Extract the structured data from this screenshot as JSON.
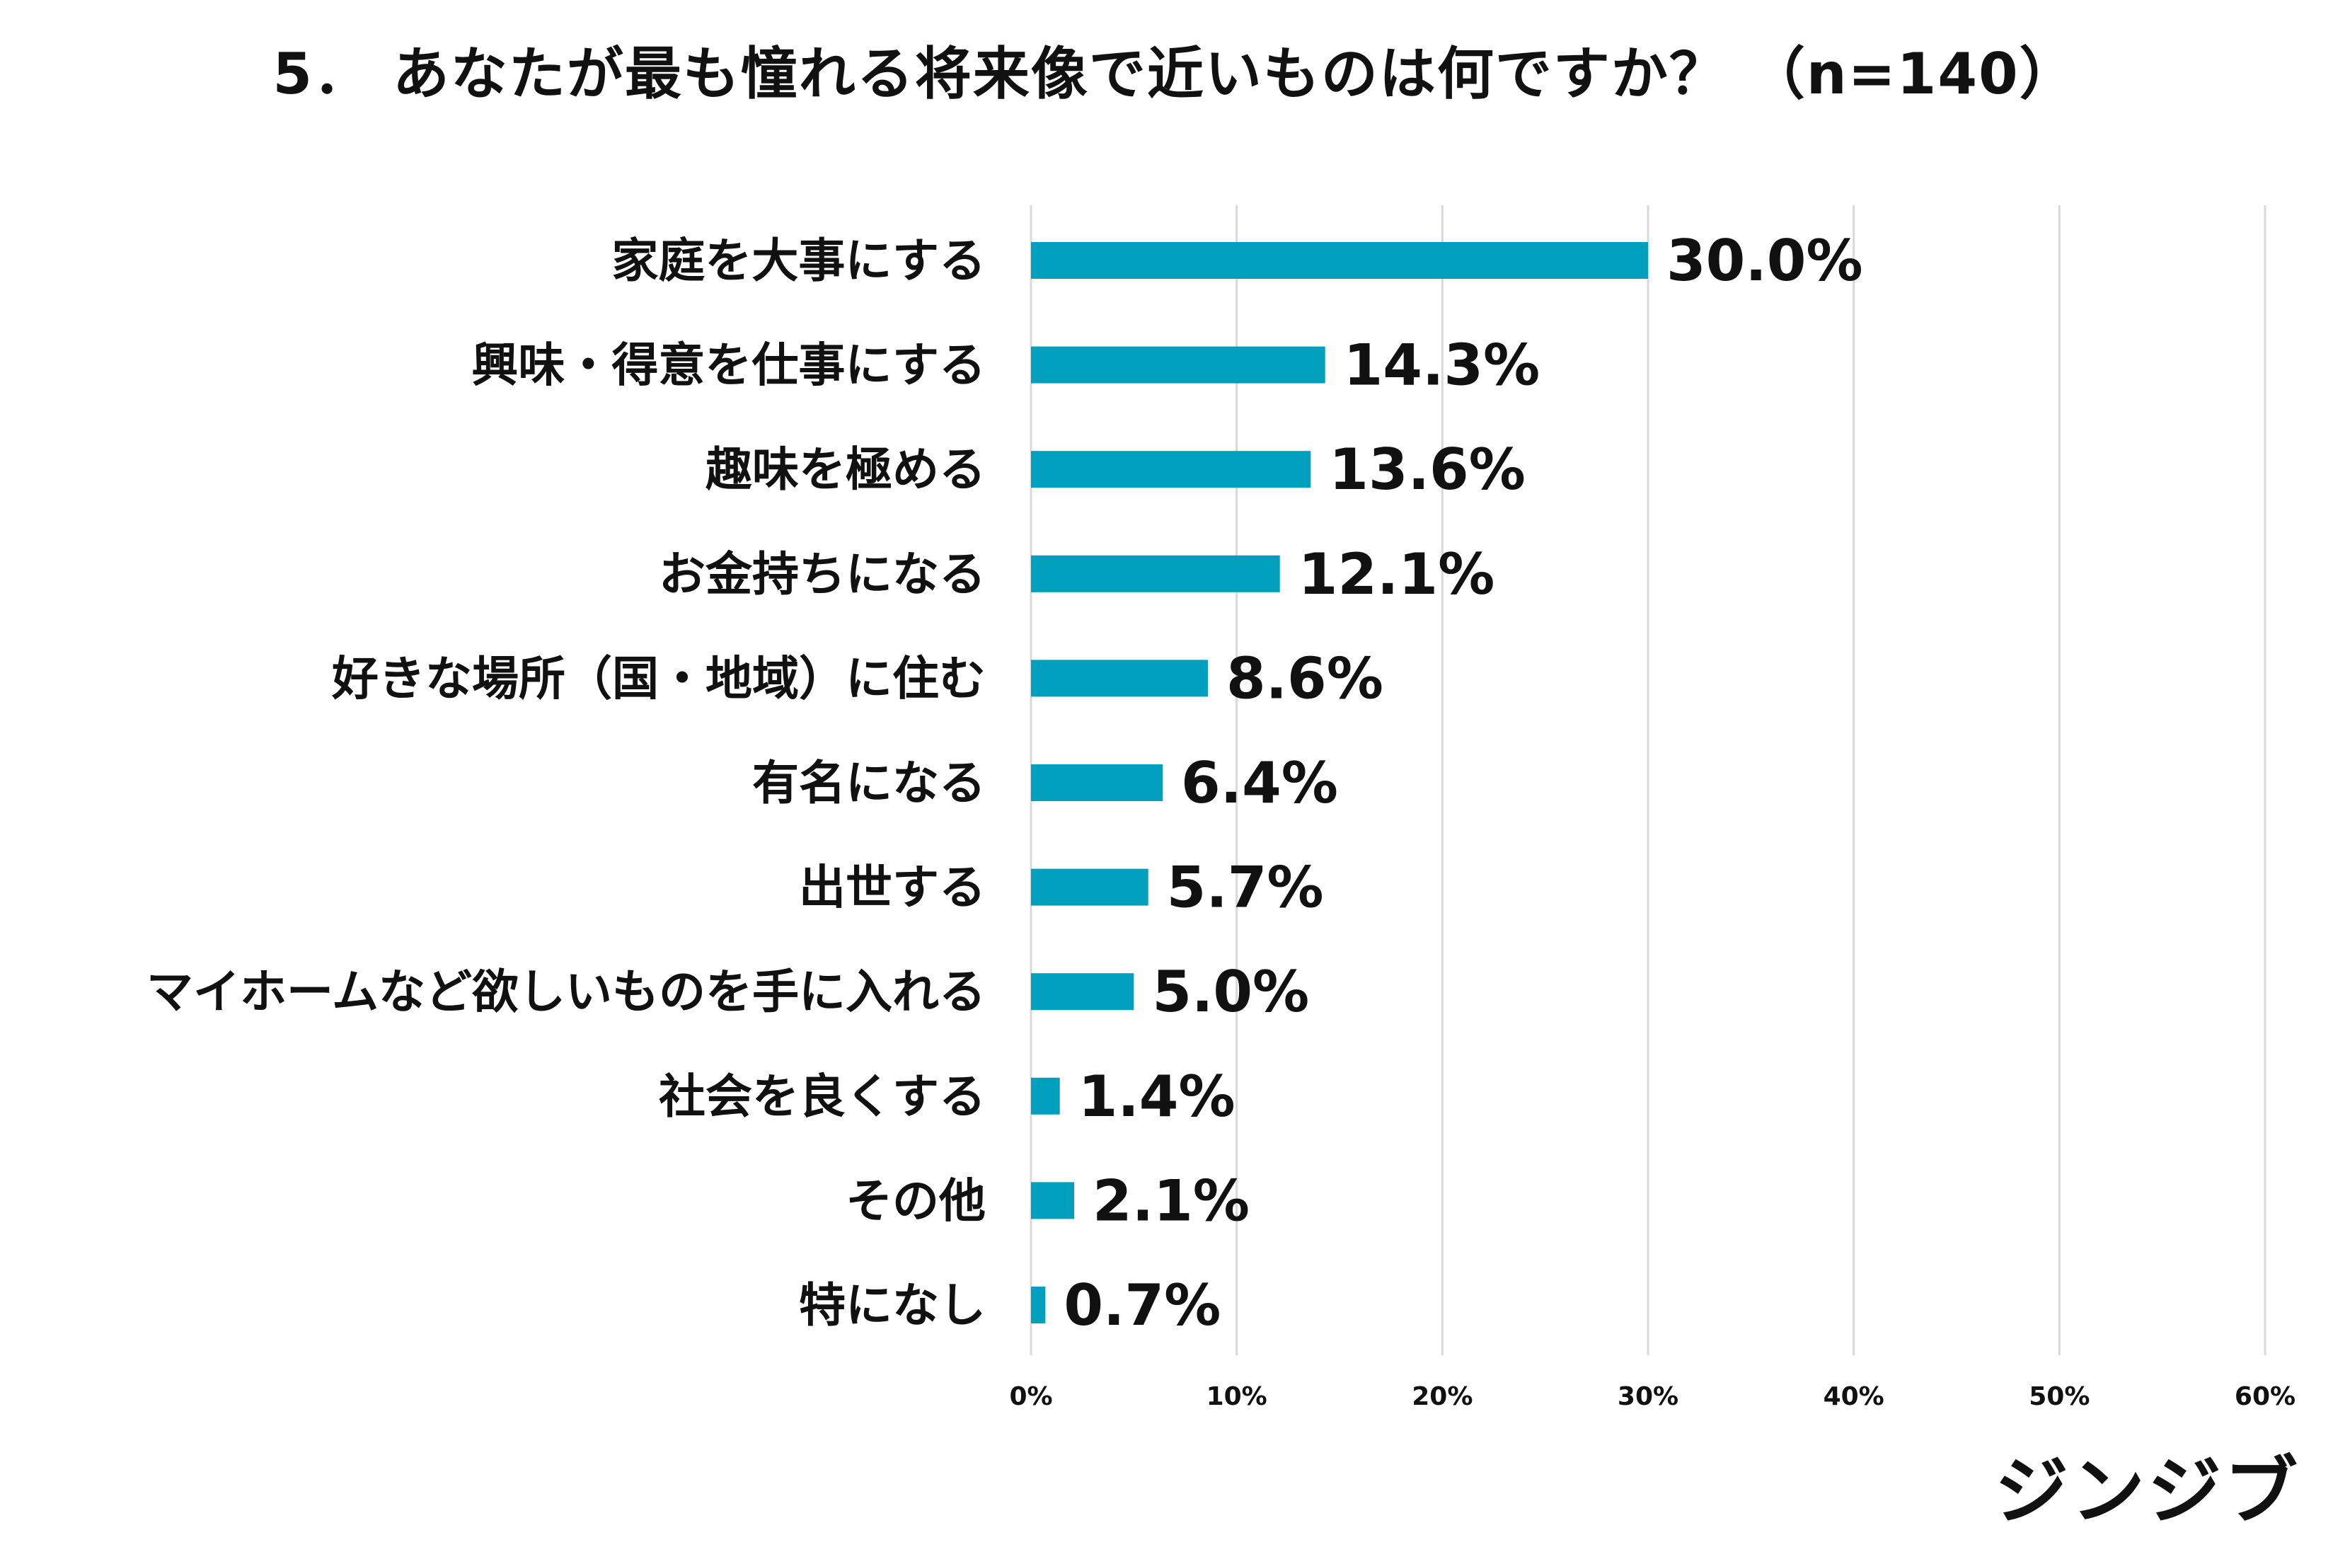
{
  "chart_data": {
    "type": "bar",
    "orientation": "horizontal",
    "title": "5． あなたが最も憧れる将来像で近いものは何ですか？ （n=140）",
    "categories": [
      "家庭を大事にする",
      "興味・得意を仕事にする",
      "趣味を極める",
      "お金持ちになる",
      "好きな場所（国・地域）に住む",
      "有名になる",
      "出世する",
      "マイホームなど欲しいものを手に入れる",
      "社会を良くする",
      "その他",
      "特になし"
    ],
    "values": [
      30.0,
      14.3,
      13.6,
      12.1,
      8.6,
      6.4,
      5.7,
      5.0,
      1.4,
      2.1,
      0.7
    ],
    "value_labels": [
      "30.0%",
      "14.3%",
      "13.6%",
      "12.1%",
      "8.6%",
      "6.4%",
      "5.7%",
      "5.0%",
      "1.4%",
      "2.1%",
      "0.7%"
    ],
    "xlim": [
      0,
      60
    ],
    "ticks": [
      0,
      10,
      20,
      30,
      40,
      50,
      60
    ],
    "tick_labels": [
      "0%",
      "10%",
      "20%",
      "30%",
      "40%",
      "50%",
      "60%"
    ],
    "grid": true,
    "bar_color": "#009fbd",
    "grid_color": "#d9d9d9"
  },
  "brand": "ジンジブ"
}
